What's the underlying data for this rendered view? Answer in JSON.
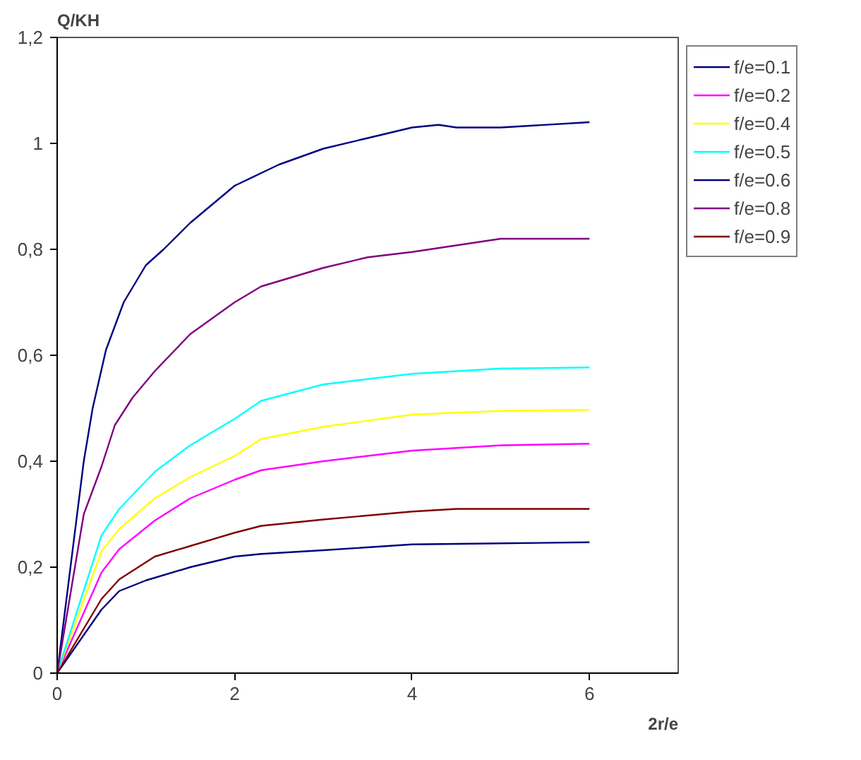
{
  "chart_data": {
    "type": "line",
    "xlabel": "2r/e",
    "ylabel": "Q/KH",
    "xlim": [
      0,
      7
    ],
    "ylim": [
      0,
      1.2
    ],
    "xticks": [
      0,
      2,
      4,
      6
    ],
    "yticks": [
      0,
      {
        "value": 0.2,
        "label": "0,2"
      },
      {
        "value": 0.4,
        "label": "0,4"
      },
      {
        "value": 0.6,
        "label": "0,6"
      },
      {
        "value": 0.8,
        "label": "0,8"
      },
      1,
      {
        "value": 1.2,
        "label": "1,2"
      }
    ],
    "grid": false,
    "legend": "top right",
    "marker": "none",
    "line_style": "solid",
    "series": [
      {
        "name": "f/e=0.1",
        "color": "#000080",
        "x": [
          0,
          0.5,
          0.7,
          1,
          1.5,
          2,
          2.3,
          3,
          4,
          5,
          6
        ],
        "values": [
          0,
          0.12,
          0.155,
          0.175,
          0.2,
          0.22,
          0.225,
          0.232,
          0.243,
          0.245,
          0.247
        ]
      },
      {
        "name": "f/e=0.2",
        "color": "#ff00ff",
        "x": [
          0,
          0.5,
          0.7,
          1.1,
          1.5,
          2,
          2.3,
          3,
          4,
          5,
          6
        ],
        "values": [
          0,
          0.19,
          0.234,
          0.288,
          0.33,
          0.365,
          0.383,
          0.4,
          0.42,
          0.43,
          0.433
        ]
      },
      {
        "name": "f/e=0.4",
        "color": "#ffff00",
        "x": [
          0,
          0.5,
          0.7,
          1.1,
          1.5,
          2,
          2.3,
          3,
          4,
          5,
          6
        ],
        "values": [
          0,
          0.23,
          0.272,
          0.33,
          0.37,
          0.41,
          0.442,
          0.465,
          0.488,
          0.495,
          0.497
        ]
      },
      {
        "name": "f/e=0.5",
        "color": "#00ffff",
        "x": [
          0,
          0.5,
          0.7,
          1.1,
          1.5,
          2,
          2.3,
          3,
          4,
          5,
          6
        ],
        "values": [
          0,
          0.26,
          0.31,
          0.38,
          0.43,
          0.48,
          0.514,
          0.545,
          0.565,
          0.575,
          0.577
        ]
      },
      {
        "name": "f/e=0.6",
        "color": "#000080",
        "x": [
          0,
          0.3,
          0.4,
          0.55,
          0.75,
          1,
          1.2,
          1.5,
          2,
          2.5,
          3,
          3.5,
          4,
          4.3,
          4.5,
          5,
          6
        ],
        "values": [
          0,
          0.4,
          0.5,
          0.61,
          0.7,
          0.77,
          0.8,
          0.85,
          0.92,
          0.96,
          0.99,
          1.01,
          1.03,
          1.035,
          1.03,
          1.03,
          1.04
        ]
      },
      {
        "name": "f/e=0.8",
        "color": "#800080",
        "x": [
          0,
          0.3,
          0.5,
          0.65,
          0.85,
          1.1,
          1.5,
          2,
          2.3,
          3,
          3.5,
          4,
          5,
          6
        ],
        "values": [
          0,
          0.3,
          0.39,
          0.468,
          0.52,
          0.57,
          0.64,
          0.7,
          0.73,
          0.765,
          0.785,
          0.795,
          0.82,
          0.82
        ]
      },
      {
        "name": "f/e=0.9",
        "color": "#800000",
        "x": [
          0,
          0.5,
          0.7,
          1.1,
          1.5,
          2,
          2.3,
          3,
          4,
          4.5,
          6
        ],
        "values": [
          0,
          0.14,
          0.177,
          0.22,
          0.24,
          0.265,
          0.278,
          0.29,
          0.305,
          0.31,
          0.31
        ]
      }
    ]
  }
}
